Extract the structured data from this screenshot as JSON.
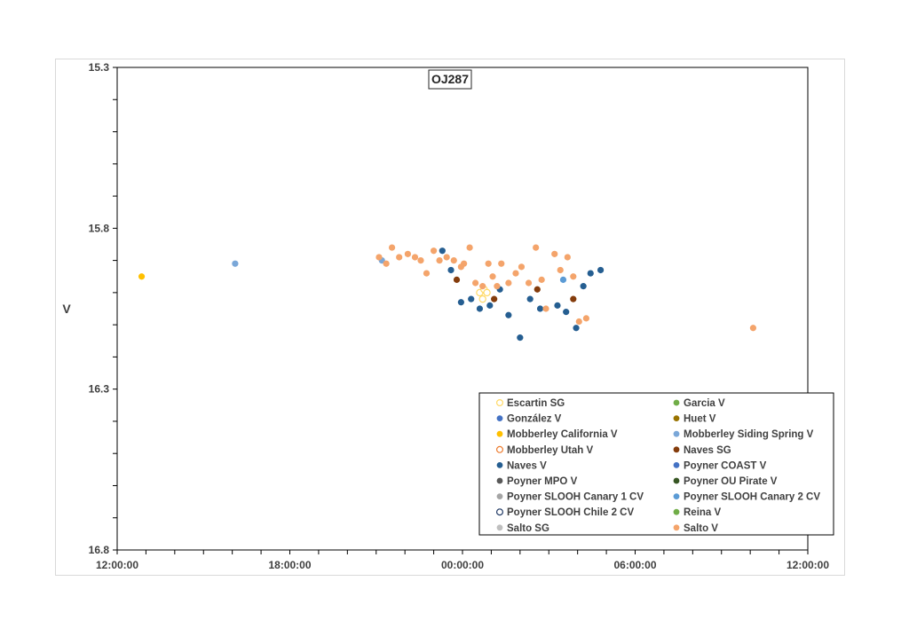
{
  "chart_data": {
    "type": "scatter",
    "title": "OJ287",
    "ylabel": "V",
    "xlabel": "",
    "x_unit": "hours (elapsed, 12:00:00 start)",
    "xlim": [
      0,
      24
    ],
    "ylim": [
      16.8,
      15.3
    ],
    "y_reversed": true,
    "x_ticks": [
      "12:00:00",
      "18:00:00",
      "00:00:00",
      "06:00:00",
      "12:00:00"
    ],
    "x_tick_values": [
      0,
      6,
      12,
      18,
      24
    ],
    "y_ticks": [
      "15.3",
      "15.8",
      "16.3",
      "16.8"
    ],
    "y_tick_values": [
      15.3,
      15.8,
      16.3,
      16.8
    ],
    "grid": false,
    "legend_position": "bottom-right",
    "series": [
      {
        "name": "Escartin SG",
        "marker": "open",
        "color": "#ffd966",
        "points": [
          [
            12.6,
            16.0
          ],
          [
            12.75,
            15.99
          ],
          [
            12.85,
            16.0
          ],
          [
            12.7,
            16.02
          ]
        ]
      },
      {
        "name": "Garcia V",
        "marker": "filled",
        "color": "#70ad47",
        "points": []
      },
      {
        "name": "González V",
        "marker": "filled",
        "color": "#4472c4",
        "points": []
      },
      {
        "name": "Huet V",
        "marker": "filled",
        "color": "#997300",
        "points": []
      },
      {
        "name": "Mobberley California V",
        "marker": "filled",
        "color": "#ffc000",
        "points": [
          [
            0.85,
            15.95
          ]
        ]
      },
      {
        "name": "Mobberley Siding Spring V",
        "marker": "filled",
        "color": "#7aa7d8",
        "points": [
          [
            4.1,
            15.91
          ],
          [
            9.2,
            15.9
          ]
        ]
      },
      {
        "name": "Mobberley Utah V",
        "marker": "open",
        "color": "#ed7d31",
        "points": []
      },
      {
        "name": "Naves SG",
        "marker": "filled",
        "color": "#843c0c",
        "points": [
          [
            11.8,
            15.96
          ],
          [
            13.1,
            16.02
          ],
          [
            14.6,
            15.99
          ],
          [
            15.85,
            16.02
          ]
        ]
      },
      {
        "name": "Naves V",
        "marker": "filled",
        "color": "#255e91",
        "points": [
          [
            11.3,
            15.87
          ],
          [
            11.6,
            15.93
          ],
          [
            11.95,
            16.03
          ],
          [
            12.3,
            16.02
          ],
          [
            12.6,
            16.05
          ],
          [
            12.95,
            16.04
          ],
          [
            13.3,
            15.99
          ],
          [
            13.6,
            16.07
          ],
          [
            14.0,
            16.14
          ],
          [
            14.35,
            16.02
          ],
          [
            14.7,
            16.05
          ],
          [
            15.3,
            16.04
          ],
          [
            15.6,
            16.06
          ],
          [
            15.95,
            16.11
          ],
          [
            16.2,
            15.98
          ],
          [
            16.45,
            15.94
          ],
          [
            16.8,
            15.93
          ]
        ]
      },
      {
        "name": "Poyner COAST V",
        "marker": "filled",
        "color": "#4472c4",
        "points": []
      },
      {
        "name": "Poyner MPO V",
        "marker": "filled",
        "color": "#595959",
        "points": []
      },
      {
        "name": "Poyner OU Pirate V",
        "marker": "filled",
        "color": "#375623",
        "points": []
      },
      {
        "name": "Poyner SLOOH Canary 1 CV",
        "marker": "filled",
        "color": "#a5a5a5",
        "points": []
      },
      {
        "name": "Poyner SLOOH Canary 2 CV",
        "marker": "filled",
        "color": "#5b9bd5",
        "points": [
          [
            15.5,
            15.96
          ]
        ]
      },
      {
        "name": "Poyner SLOOH Chile 2 CV",
        "marker": "open",
        "color": "#1f3864",
        "points": []
      },
      {
        "name": "Reina V",
        "marker": "filled",
        "color": "#70ad47",
        "points": []
      },
      {
        "name": "Salto SG",
        "marker": "filled",
        "color": "#bfbfbf",
        "points": []
      },
      {
        "name": "Salto V",
        "marker": "filled",
        "color": "#f4a46b",
        "points": [
          [
            9.1,
            15.89
          ],
          [
            9.35,
            15.91
          ],
          [
            9.55,
            15.86
          ],
          [
            9.8,
            15.89
          ],
          [
            10.1,
            15.88
          ],
          [
            10.35,
            15.89
          ],
          [
            10.55,
            15.9
          ],
          [
            10.75,
            15.94
          ],
          [
            11.0,
            15.87
          ],
          [
            11.2,
            15.9
          ],
          [
            11.45,
            15.89
          ],
          [
            11.7,
            15.9
          ],
          [
            11.95,
            15.92
          ],
          [
            12.05,
            15.91
          ],
          [
            12.25,
            15.86
          ],
          [
            12.45,
            15.97
          ],
          [
            12.7,
            15.98
          ],
          [
            12.9,
            15.91
          ],
          [
            13.05,
            15.95
          ],
          [
            13.2,
            15.98
          ],
          [
            13.35,
            15.91
          ],
          [
            13.6,
            15.97
          ],
          [
            13.85,
            15.94
          ],
          [
            14.05,
            15.92
          ],
          [
            14.3,
            15.97
          ],
          [
            14.55,
            15.86
          ],
          [
            14.75,
            15.96
          ],
          [
            14.9,
            16.05
          ],
          [
            15.2,
            15.88
          ],
          [
            15.4,
            15.93
          ],
          [
            15.65,
            15.89
          ],
          [
            15.85,
            15.95
          ],
          [
            16.05,
            16.09
          ],
          [
            16.3,
            16.08
          ],
          [
            22.1,
            16.11
          ]
        ]
      }
    ]
  },
  "legend_rows": [
    [
      "Escartin SG",
      "Garcia V"
    ],
    [
      "González V",
      "Huet V"
    ],
    [
      "Mobberley California V",
      "Mobberley Siding Spring V"
    ],
    [
      "Mobberley Utah V",
      "Naves SG"
    ],
    [
      "Naves V",
      "Poyner COAST V"
    ],
    [
      "Poyner MPO V",
      "Poyner OU Pirate V"
    ],
    [
      "Poyner SLOOH Canary 1 CV",
      "Poyner SLOOH Canary 2 CV"
    ],
    [
      "Poyner SLOOH Chile 2 CV",
      "Reina V"
    ],
    [
      "Salto SG",
      "Salto V"
    ]
  ]
}
